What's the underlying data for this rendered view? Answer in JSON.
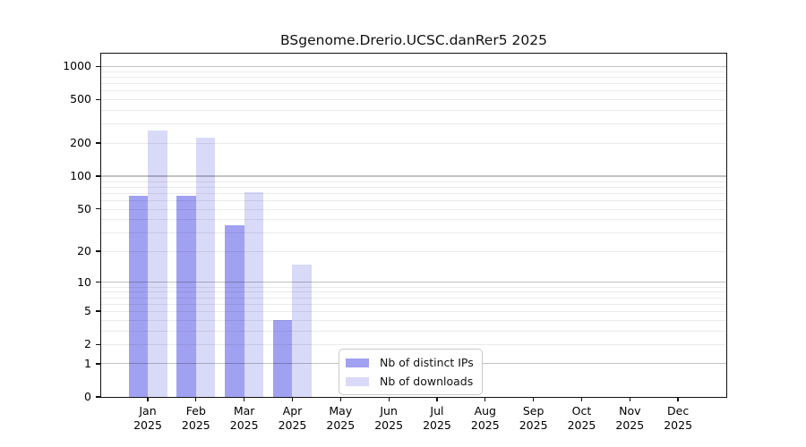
{
  "title": "BSgenome.Drerio.UCSC.danRer5 2025",
  "chart_data": {
    "type": "bar",
    "title": "BSgenome.Drerio.UCSC.danRer5 2025",
    "year": "2025",
    "months": [
      "Jan",
      "Feb",
      "Mar",
      "Apr",
      "May",
      "Jun",
      "Jul",
      "Aug",
      "Sep",
      "Oct",
      "Nov",
      "Dec"
    ],
    "categories": [
      "Jan 2025",
      "Feb 2025",
      "Mar 2025",
      "Apr 2025",
      "May 2025",
      "Jun 2025",
      "Jul 2025",
      "Aug 2025",
      "Sep 2025",
      "Oct 2025",
      "Nov 2025",
      "Dec 2025"
    ],
    "series": [
      {
        "name": "Nb of distinct IPs",
        "color": "#a1a1f1",
        "values": [
          66,
          66,
          35,
          4,
          0,
          0,
          0,
          0,
          0,
          0,
          0,
          0
        ]
      },
      {
        "name": "Nb of downloads",
        "color": "#d9d9f8",
        "values": [
          260,
          224,
          71,
          15,
          0,
          0,
          0,
          0,
          0,
          0,
          0,
          0
        ]
      }
    ],
    "yscale": "log1p",
    "yticks": [
      0,
      1,
      2,
      5,
      10,
      20,
      50,
      100,
      200,
      500,
      1000
    ],
    "ylim": [
      0,
      1300
    ],
    "grid": "major-and-minor",
    "legend_position": "inside-bottom-center",
    "xlabel": "",
    "ylabel": ""
  },
  "legend": {
    "items": [
      {
        "label": "Nb of distinct IPs",
        "color": "#a1a1f1"
      },
      {
        "label": "Nb of downloads",
        "color": "#d9d9f8"
      }
    ]
  }
}
